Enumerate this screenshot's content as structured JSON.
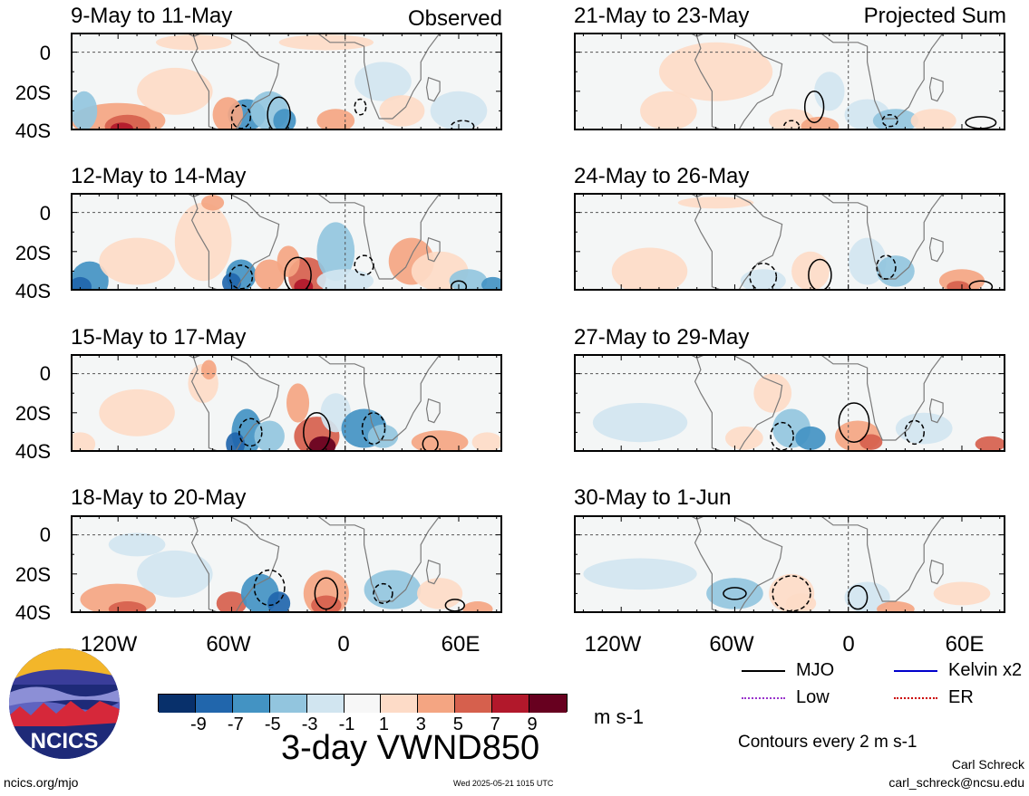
{
  "chart_data": {
    "type": "heatmap",
    "variable": "VWND850",
    "title": "3-day VWND850",
    "units": "m s-1",
    "contour_note": "Contours every 2 m s-1",
    "x_axis": {
      "ticks": [
        "120W",
        "60W",
        "0",
        "60E"
      ],
      "tick_values": [
        -120,
        -60,
        0,
        60
      ],
      "range": [
        -145,
        83
      ]
    },
    "y_axis": {
      "ticks": [
        "0",
        "20S",
        "40S"
      ],
      "tick_values": [
        0,
        -20,
        -40
      ],
      "range": [
        -40,
        10
      ]
    },
    "colorbar": {
      "labels": [
        "-9",
        "-7",
        "-5",
        "-3",
        "-1",
        "1",
        "3",
        "5",
        "7",
        "9"
      ],
      "colors": [
        "#08306b",
        "#2166ac",
        "#4393c3",
        "#92c5de",
        "#d1e5f0",
        "#f7f7f7",
        "#fddbc7",
        "#f4a582",
        "#d6604d",
        "#b2182b",
        "#67001f"
      ]
    },
    "panel_groups": [
      {
        "label": "Observed",
        "panels": [
          "9-May to 11-May",
          "12-May to 14-May",
          "15-May to 17-May",
          "18-May to 20-May"
        ]
      },
      {
        "label": "Projected Sum",
        "panels": [
          "21-May to 23-May",
          "24-May to 26-May",
          "27-May to 29-May",
          "30-May to 1-Jun"
        ]
      }
    ],
    "legend": [
      {
        "name": "MJO",
        "color": "#000000"
      },
      {
        "name": "Kelvin x2",
        "color": "#0000cc"
      },
      {
        "name": "Low",
        "color": "#9933cc"
      },
      {
        "name": "ER",
        "color": "#cc0000"
      }
    ]
  },
  "branding": {
    "logo_text": "NCICS",
    "site": "ncics.org/mjo",
    "timestamp": "Wed 2025-05-21 1015 UTC",
    "author": "Carl Schreck",
    "email": "carl_schreck@ncsu.edu"
  },
  "colors": {
    "mjo": "#000000",
    "kelvin": "#0000cc",
    "low": "#9933cc",
    "er": "#cc0000"
  }
}
